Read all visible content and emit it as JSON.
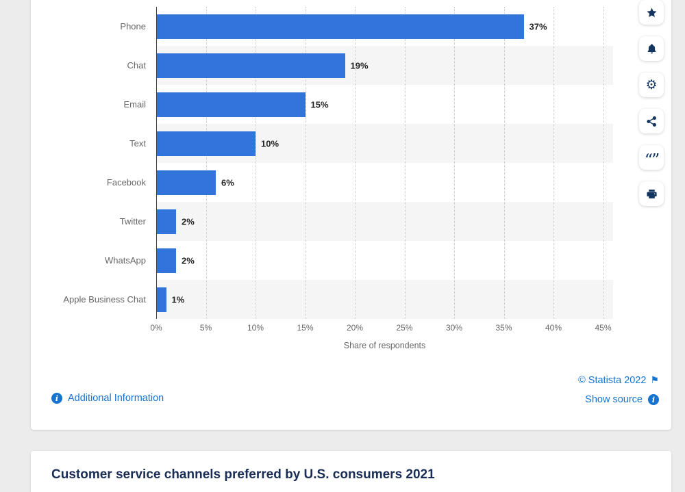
{
  "chart_data": {
    "type": "bar",
    "orientation": "horizontal",
    "categories": [
      "Phone",
      "Chat",
      "Email",
      "Text",
      "Facebook",
      "Twitter",
      "WhatsApp",
      "Apple Business Chat"
    ],
    "values": [
      37,
      19,
      15,
      10,
      6,
      2,
      2,
      1
    ],
    "value_labels": [
      "37%",
      "19%",
      "15%",
      "10%",
      "6%",
      "2%",
      "2%",
      "1%"
    ],
    "xlabel": "Share of respondents",
    "x_axis": {
      "tick_values": [
        0,
        5,
        10,
        15,
        20,
        25,
        30,
        35,
        40,
        45
      ],
      "tick_labels": [
        "0%",
        "5%",
        "10%",
        "15%",
        "20%",
        "25%",
        "30%",
        "35%",
        "40%",
        "45%"
      ],
      "min": 0,
      "max": 45,
      "max_display": 46
    },
    "grid": "vertical-dotted",
    "row_stripes": "alternate",
    "legend": "none",
    "title": ""
  },
  "colors": {
    "bar": "#3273dc",
    "link": "#1673d0",
    "heading": "#1a2e55",
    "icon": "#14355f"
  },
  "footer": {
    "additional_information": "Additional Information",
    "copyright": "© Statista 2022",
    "flag_icon": "⚑",
    "show_source": "Show source"
  },
  "toolbar": {
    "buttons": [
      {
        "name": "favorite-star"
      },
      {
        "name": "notifications-bell"
      },
      {
        "name": "settings-gear"
      },
      {
        "name": "share-nodes"
      },
      {
        "name": "citation-quote"
      },
      {
        "name": "print-printer"
      }
    ],
    "gear_glyph": "⚙",
    "quote_glyph": "“”"
  },
  "section_below": {
    "title": "Customer service channels preferred by U.S. consumers 2021"
  }
}
